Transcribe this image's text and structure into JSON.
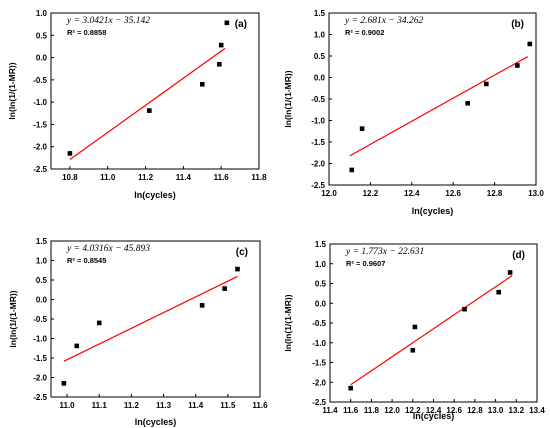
{
  "chart_data": [
    {
      "type": "scatter",
      "panel_label": "(a)",
      "equation": "y = 3.0421x − 35.142",
      "r2_label": "R² = 0.8858",
      "xlabel": "ln(cycles)",
      "ylabel": "ln(ln(1/(1-MR))",
      "xlim": [
        10.7,
        11.8
      ],
      "ylim": [
        -2.5,
        1.0
      ],
      "x_ticks": [
        10.8,
        11.0,
        11.2,
        11.4,
        11.6,
        11.8
      ],
      "y_ticks": [
        -2.5,
        -2.0,
        -1.5,
        -1.0,
        -0.5,
        0.0,
        0.5,
        1.0
      ],
      "tick_decimals": 1,
      "fit": {
        "slope": 3.0421,
        "intercept": -35.142,
        "x_from": 10.8,
        "x_to": 11.62
      },
      "points": [
        {
          "x": 10.8,
          "y": -2.15
        },
        {
          "x": 11.22,
          "y": -1.19
        },
        {
          "x": 11.5,
          "y": -0.6
        },
        {
          "x": 11.59,
          "y": -0.15
        },
        {
          "x": 11.6,
          "y": 0.28
        },
        {
          "x": 11.63,
          "y": 0.78
        }
      ]
    },
    {
      "type": "scatter",
      "panel_label": "(b)",
      "equation": "y = 2.681x − 34.262",
      "r2_label": "R² = 0.9002",
      "xlabel": "ln(cycles)",
      "ylabel": "ln(ln(1/(1-MR))",
      "xlim": [
        12.0,
        13.0
      ],
      "ylim": [
        -2.5,
        1.5
      ],
      "x_ticks": [
        12.0,
        12.2,
        12.4,
        12.6,
        12.8,
        13.0
      ],
      "y_ticks": [
        -2.5,
        -2.0,
        -1.5,
        -1.0,
        -0.5,
        0.0,
        0.5,
        1.0,
        1.5
      ],
      "tick_decimals": 1,
      "fit": {
        "slope": 2.681,
        "intercept": -34.262,
        "x_from": 12.1,
        "x_to": 12.96
      },
      "points": [
        {
          "x": 12.11,
          "y": -2.15
        },
        {
          "x": 12.16,
          "y": -1.19
        },
        {
          "x": 12.67,
          "y": -0.6
        },
        {
          "x": 12.76,
          "y": -0.15
        },
        {
          "x": 12.91,
          "y": 0.28
        },
        {
          "x": 12.97,
          "y": 0.78
        }
      ]
    },
    {
      "type": "scatter",
      "panel_label": "(c)",
      "equation": "y = 4.0316x − 45.893",
      "r2_label": "R² = 0.8545",
      "xlabel": "ln(cycles)",
      "ylabel": "ln(ln(1/(1-MR))",
      "xlim": [
        10.95,
        11.6
      ],
      "ylim": [
        -2.5,
        1.5
      ],
      "x_ticks": [
        11.0,
        11.1,
        11.2,
        11.3,
        11.4,
        11.5,
        11.6
      ],
      "y_ticks": [
        -2.5,
        -2.0,
        -1.5,
        -1.0,
        -0.5,
        0.0,
        0.5,
        1.0,
        1.5
      ],
      "tick_decimals": 1,
      "fit": {
        "slope": 4.0316,
        "intercept": -45.893,
        "x_from": 10.99,
        "x_to": 11.53
      },
      "points": [
        {
          "x": 10.99,
          "y": -2.15
        },
        {
          "x": 11.03,
          "y": -1.19
        },
        {
          "x": 11.1,
          "y": -0.6
        },
        {
          "x": 11.42,
          "y": -0.15
        },
        {
          "x": 11.49,
          "y": 0.28
        },
        {
          "x": 11.53,
          "y": 0.78
        }
      ]
    },
    {
      "type": "scatter",
      "panel_label": "(d)",
      "equation": "y = 1.773x − 22.631",
      "r2_label": "R² = 0.9607",
      "xlabel": "ln(cycles)",
      "ylabel": "ln(ln(1/(1-MR))",
      "xlim": [
        11.4,
        13.4
      ],
      "ylim": [
        -2.5,
        1.5
      ],
      "x_ticks": [
        11.4,
        11.6,
        11.8,
        12.0,
        12.2,
        12.4,
        12.6,
        12.8,
        13.0,
        13.2,
        13.4
      ],
      "y_ticks": [
        -2.5,
        -2.0,
        -1.5,
        -1.0,
        -0.5,
        0.0,
        0.5,
        1.0,
        1.5
      ],
      "tick_decimals": 1,
      "fit": {
        "slope": 1.773,
        "intercept": -22.631,
        "x_from": 11.6,
        "x_to": 13.16
      },
      "points": [
        {
          "x": 11.6,
          "y": -2.15
        },
        {
          "x": 12.2,
          "y": -1.19
        },
        {
          "x": 12.22,
          "y": -0.6
        },
        {
          "x": 12.7,
          "y": -0.15
        },
        {
          "x": 13.03,
          "y": 0.28
        },
        {
          "x": 13.14,
          "y": 0.78
        }
      ]
    }
  ]
}
